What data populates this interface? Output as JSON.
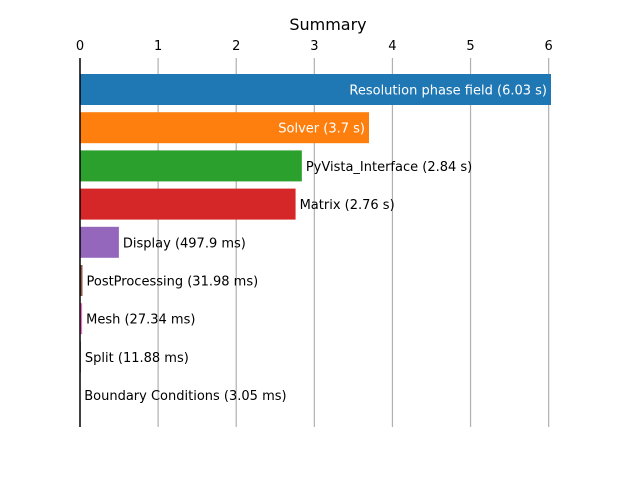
{
  "chart_data": {
    "type": "bar",
    "orientation": "horizontal",
    "title": "Summary",
    "xlabel": "",
    "ylabel": "",
    "xlim": [
      0,
      6.03
    ],
    "x_ticks": [
      "0",
      "1",
      "2",
      "3",
      "4",
      "5",
      "6"
    ],
    "x_axis_position": "top",
    "grid": "vertical",
    "categories": [
      "Resolution phase field",
      "Solver",
      "PyVista_Interface",
      "Matrix",
      "Display",
      "PostProcessing",
      "Mesh",
      "Split",
      "Boundary Conditions"
    ],
    "values": [
      6.03,
      3.7,
      2.84,
      2.76,
      0.4979,
      0.03198,
      0.02734,
      0.01188,
      0.00305
    ],
    "labels": [
      "Resolution phase field (6.03 s)",
      "Solver (3.7 s)",
      "PyVista_Interface (2.84 s)",
      "Matrix (2.76 s)",
      "Display (497.9 ms)",
      "PostProcessing (31.98 ms)",
      "Mesh (27.34 ms)",
      "Split (11.88 ms)",
      "Boundary Conditions (3.05 ms)"
    ],
    "colors": [
      "#1f77b4",
      "#ff7f0e",
      "#2ca02c",
      "#d62728",
      "#9467bd",
      "#8c564b",
      "#e377c2",
      "#7f7f7f",
      "#bcbd22"
    ],
    "label_inside": [
      true,
      true,
      false,
      false,
      false,
      false,
      false,
      false,
      false
    ]
  }
}
